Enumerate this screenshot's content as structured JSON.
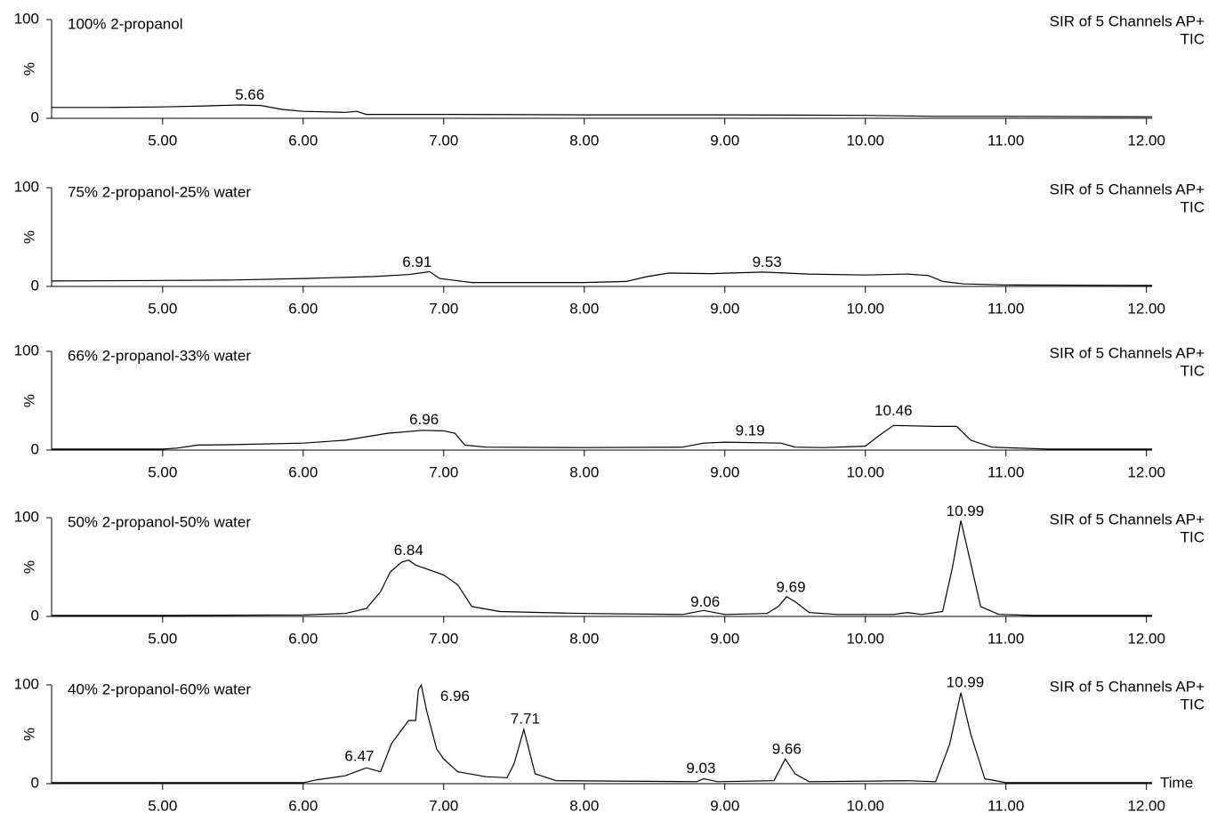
{
  "chart_data": [
    {
      "type": "line",
      "title": "100% 2-propanol",
      "detector": "SIR of 5 Channels AP+",
      "mode": "TIC",
      "ylabel": "%",
      "color": "#000000",
      "xlim": [
        4.21,
        12.04
      ],
      "ylim": [
        0,
        100
      ],
      "yticks": [
        0,
        100
      ],
      "xticks": [
        {
          "value": 5,
          "label": "5.00"
        },
        {
          "value": 6,
          "label": "6.00"
        },
        {
          "value": 7,
          "label": "7.00"
        },
        {
          "value": 8,
          "label": "8.00"
        },
        {
          "value": 9,
          "label": "9.00"
        },
        {
          "value": 10,
          "label": "10.00"
        },
        {
          "value": 11,
          "label": "11.00"
        },
        {
          "value": 12,
          "label": "12.00"
        }
      ],
      "x": [
        4.21,
        4.6,
        5.0,
        5.3,
        5.55,
        5.7,
        5.85,
        6.0,
        6.3,
        6.38,
        6.45,
        7.0,
        8.0,
        9.0,
        10.0,
        10.5,
        11.0,
        12.04
      ],
      "values": [
        11,
        11,
        11.5,
        12.5,
        13.5,
        13,
        9,
        7,
        6,
        7,
        4,
        4,
        3.5,
        3.5,
        3,
        2,
        2,
        1.5
      ],
      "annotations": [
        {
          "label": "5.66",
          "x": 5.62,
          "y": 23
        }
      ]
    },
    {
      "type": "line",
      "title": "75% 2-propanol-25% water",
      "detector": "SIR of 5 Channels AP+",
      "mode": "TIC",
      "ylabel": "%",
      "color": "#000000",
      "xlim": [
        4.21,
        12.04
      ],
      "ylim": [
        0,
        100
      ],
      "yticks": [
        0,
        100
      ],
      "xticks": [
        {
          "value": 5,
          "label": "5.00"
        },
        {
          "value": 6,
          "label": "6.00"
        },
        {
          "value": 7,
          "label": "7.00"
        },
        {
          "value": 8,
          "label": "8.00"
        },
        {
          "value": 9,
          "label": "9.00"
        },
        {
          "value": 10,
          "label": "10.00"
        },
        {
          "value": 11,
          "label": "11.00"
        },
        {
          "value": 12,
          "label": "12.00"
        }
      ],
      "x": [
        4.21,
        5.0,
        5.5,
        6.0,
        6.5,
        6.75,
        6.85,
        6.9,
        6.97,
        7.2,
        8.0,
        8.3,
        8.45,
        8.6,
        8.9,
        9.27,
        9.6,
        10.0,
        10.3,
        10.45,
        10.55,
        10.7,
        11.0,
        12.04
      ],
      "values": [
        5.5,
        6,
        6.5,
        8,
        10,
        12,
        14,
        15,
        8,
        4,
        4,
        5,
        10,
        13.5,
        13,
        14.5,
        12.5,
        11.5,
        12.5,
        11,
        5,
        2.5,
        1.5,
        1
      ],
      "annotations": [
        {
          "label": "6.91",
          "x": 6.81,
          "y": 24
        },
        {
          "label": "9.53",
          "x": 9.3,
          "y": 24
        }
      ]
    },
    {
      "type": "line",
      "title": "66% 2-propanol-33% water",
      "detector": "SIR of 5 Channels AP+",
      "mode": "TIC",
      "ylabel": "%",
      "color": "#000000",
      "xlim": [
        4.21,
        12.04
      ],
      "ylim": [
        0,
        100
      ],
      "yticks": [
        0,
        100
      ],
      "xticks": [
        {
          "value": 5,
          "label": "5.00"
        },
        {
          "value": 6,
          "label": "6.00"
        },
        {
          "value": 7,
          "label": "7.00"
        },
        {
          "value": 8,
          "label": "8.00"
        },
        {
          "value": 9,
          "label": "9.00"
        },
        {
          "value": 10,
          "label": "10.00"
        },
        {
          "value": 11,
          "label": "11.00"
        },
        {
          "value": 12,
          "label": "12.00"
        }
      ],
      "x": [
        4.21,
        5.0,
        5.1,
        5.25,
        5.5,
        6.0,
        6.3,
        6.6,
        6.85,
        7.0,
        7.08,
        7.15,
        7.3,
        8.0,
        8.7,
        8.85,
        9.0,
        9.4,
        9.5,
        9.7,
        10.0,
        10.1,
        10.2,
        10.5,
        10.65,
        10.75,
        10.9,
        11.3,
        12.04
      ],
      "values": [
        1,
        1,
        2,
        5,
        5.5,
        7,
        10,
        17,
        20,
        19.5,
        17,
        5,
        3,
        2.5,
        3,
        7,
        8,
        7,
        3,
        2.5,
        4,
        15,
        25,
        24,
        24,
        10,
        3,
        1,
        1
      ],
      "annotations": [
        {
          "label": "6.96",
          "x": 6.86,
          "y": 30
        },
        {
          "label": "9.19",
          "x": 9.18,
          "y": 19
        },
        {
          "label": "10.46",
          "x": 10.2,
          "y": 39
        }
      ]
    },
    {
      "type": "line",
      "title": "50% 2-propanol-50% water",
      "detector": "SIR of 5 Channels AP+",
      "mode": "TIC",
      "ylabel": "%",
      "color": "#000000",
      "xlim": [
        4.21,
        12.04
      ],
      "ylim": [
        0,
        100
      ],
      "yticks": [
        0,
        100
      ],
      "xticks": [
        {
          "value": 5,
          "label": "5.00"
        },
        {
          "value": 6,
          "label": "6.00"
        },
        {
          "value": 7,
          "label": "7.00"
        },
        {
          "value": 8,
          "label": "8.00"
        },
        {
          "value": 9,
          "label": "9.00"
        },
        {
          "value": 10,
          "label": "10.00"
        },
        {
          "value": 11,
          "label": "11.00"
        },
        {
          "value": 12,
          "label": "12.00"
        }
      ],
      "x": [
        4.21,
        5.0,
        6.0,
        6.3,
        6.45,
        6.55,
        6.62,
        6.7,
        6.75,
        6.8,
        6.9,
        7.0,
        7.1,
        7.2,
        7.4,
        8.0,
        8.7,
        8.85,
        9.0,
        9.3,
        9.38,
        9.44,
        9.5,
        9.6,
        9.8,
        10.2,
        10.3,
        10.4,
        10.55,
        10.62,
        10.68,
        10.74,
        10.82,
        10.95,
        11.2,
        12.04
      ],
      "values": [
        1,
        1,
        1.5,
        3,
        8,
        25,
        45,
        55,
        57,
        52,
        47,
        42,
        32,
        10,
        5,
        3,
        2,
        6,
        2,
        3,
        10,
        20,
        15,
        4,
        2,
        2,
        4,
        2,
        5,
        50,
        97,
        60,
        10,
        2,
        1,
        1
      ],
      "annotations": [
        {
          "label": "6.84",
          "x": 6.75,
          "y": 66
        },
        {
          "label": "9.06",
          "x": 8.86,
          "y": 14
        },
        {
          "label": "9.69",
          "x": 9.47,
          "y": 29
        },
        {
          "label": "10.99",
          "x": 10.71,
          "y": 106
        }
      ]
    },
    {
      "type": "line",
      "title": "40% 2-propanol-60% water",
      "detector": "SIR of 5 Channels AP+",
      "mode": "TIC",
      "ylabel": "%",
      "xlabel": "Time",
      "color": "#000000",
      "xlim": [
        4.21,
        12.04
      ],
      "ylim": [
        0,
        100
      ],
      "yticks": [
        0,
        100
      ],
      "xticks": [
        {
          "value": 5,
          "label": "5.00"
        },
        {
          "value": 6,
          "label": "6.00"
        },
        {
          "value": 7,
          "label": "7.00"
        },
        {
          "value": 8,
          "label": "8.00"
        },
        {
          "value": 9,
          "label": "9.00"
        },
        {
          "value": 10,
          "label": "10.00"
        },
        {
          "value": 11,
          "label": "11.00"
        },
        {
          "value": 12,
          "label": "12.00"
        }
      ],
      "x": [
        4.21,
        5.0,
        6.0,
        6.1,
        6.3,
        6.45,
        6.55,
        6.63,
        6.75,
        6.8,
        6.82,
        6.84,
        6.88,
        6.95,
        7.0,
        7.1,
        7.3,
        7.45,
        7.5,
        7.57,
        7.65,
        7.8,
        8.8,
        8.85,
        8.95,
        9.35,
        9.43,
        9.5,
        9.6,
        10.3,
        10.5,
        10.6,
        10.68,
        10.75,
        10.85,
        11.0,
        12.04
      ],
      "values": [
        1,
        1,
        1,
        4,
        8,
        16,
        12,
        41,
        64,
        64,
        95,
        100,
        73,
        35,
        25,
        12,
        7,
        6,
        20,
        55,
        10,
        3,
        2,
        5,
        2,
        3,
        25,
        10,
        2,
        3,
        2,
        40,
        92,
        50,
        5,
        1,
        1
      ],
      "annotations": [
        {
          "label": "6.47",
          "x": 6.4,
          "y": 27
        },
        {
          "label": "6.96",
          "x": 7.08,
          "y": 88
        },
        {
          "label": "7.71",
          "x": 7.58,
          "y": 65
        },
        {
          "label": "9.03",
          "x": 8.83,
          "y": 15
        },
        {
          "label": "9.66",
          "x": 9.44,
          "y": 34
        },
        {
          "label": "10.99",
          "x": 10.71,
          "y": 102
        }
      ]
    }
  ]
}
